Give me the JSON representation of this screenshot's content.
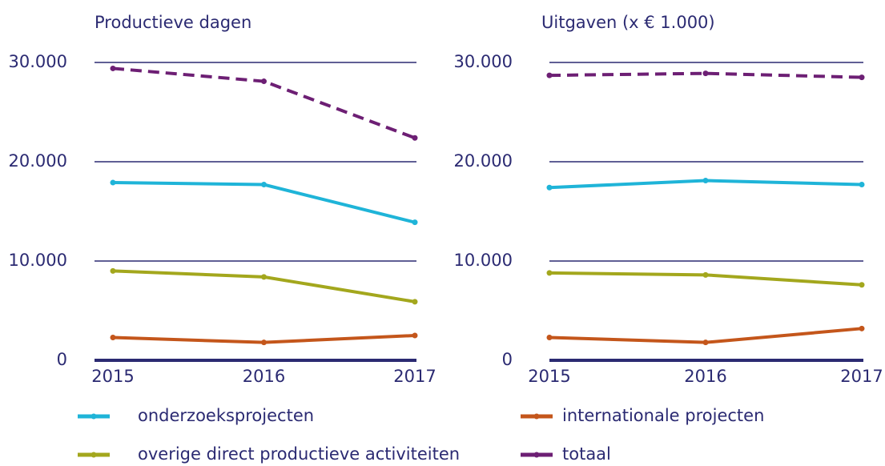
{
  "chart_data": [
    {
      "type": "line",
      "title": "Productieve dagen",
      "categories": [
        "2015",
        "2016",
        "2017"
      ],
      "ylim": [
        0,
        30000
      ],
      "yticks": [
        0,
        {
          "value": 10000,
          "label": "10.000"
        },
        {
          "value": 20000,
          "label": "20.000"
        },
        {
          "value": 30000,
          "label": "30.000"
        }
      ],
      "grid": true,
      "series": [
        {
          "name": "onderzoeksprojecten",
          "color": "#1fb4d8",
          "values": [
            17900,
            17700,
            13900
          ]
        },
        {
          "name": "internationale projecten",
          "color": "#c4561b",
          "values": [
            2300,
            1800,
            2500
          ]
        },
        {
          "name": "overige direct productieve activiteiten",
          "color": "#a3a71d",
          "values": [
            9000,
            8400,
            5900
          ]
        },
        {
          "name": "totaal",
          "color": "#6d1f74",
          "dashed": true,
          "values": [
            29400,
            28100,
            22400
          ]
        }
      ]
    },
    {
      "type": "line",
      "title": "Uitgaven (x € 1.000)",
      "categories": [
        "2015",
        "2016",
        "2017"
      ],
      "ylim": [
        0,
        30000
      ],
      "yticks": [
        0,
        {
          "value": 10000,
          "label": "10.000"
        },
        {
          "value": 20000,
          "label": "20.000"
        },
        {
          "value": 30000,
          "label": "30.000"
        }
      ],
      "grid": true,
      "series": [
        {
          "name": "onderzoeksprojecten",
          "color": "#1fb4d8",
          "values": [
            17400,
            18100,
            17700
          ]
        },
        {
          "name": "internationale projecten",
          "color": "#c4561b",
          "values": [
            2300,
            1800,
            3200
          ]
        },
        {
          "name": "overige direct productieve activiteiten",
          "color": "#a3a71d",
          "values": [
            8800,
            8600,
            7600
          ]
        },
        {
          "name": "totaal",
          "color": "#6d1f74",
          "dashed": true,
          "values": [
            28700,
            28900,
            28500
          ]
        }
      ]
    }
  ]
}
